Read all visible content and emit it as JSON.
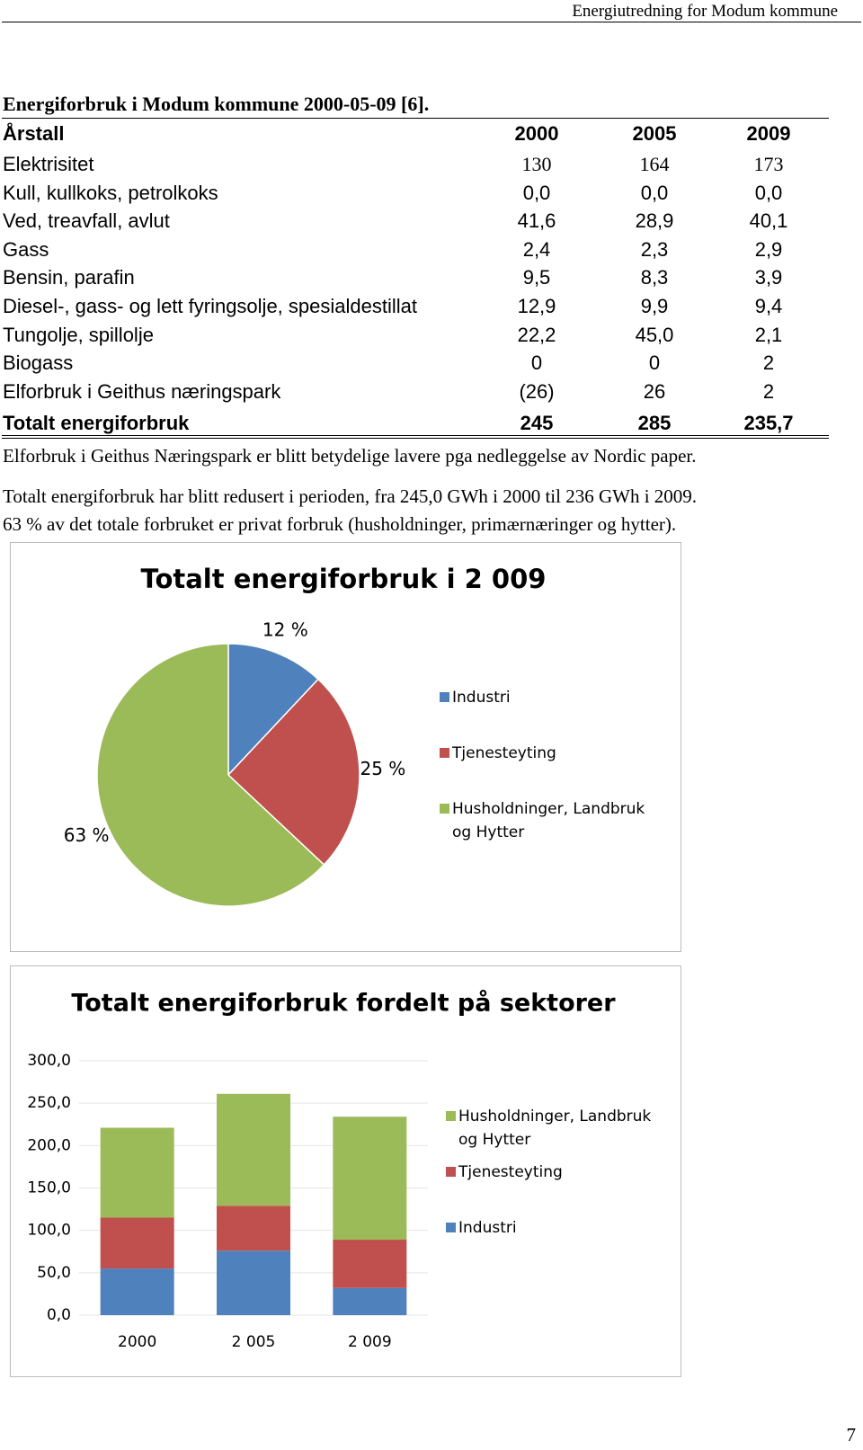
{
  "header": {
    "title": "Energiutredning for Modum kommune",
    "page_number": "7"
  },
  "table": {
    "caption": "Energiforbruk i Modum kommune 2000-05-09 [6].",
    "columns": [
      "Årstall",
      "2000",
      "2005",
      "2009"
    ],
    "rows": [
      [
        "Elektrisitet",
        "130",
        "164",
        "173"
      ],
      [
        "Kull, kullkoks, petrolkoks",
        "0,0",
        "0,0",
        "0,0"
      ],
      [
        "Ved, treavfall, avlut",
        "41,6",
        "28,9",
        "40,1"
      ],
      [
        "Gass",
        "2,4",
        "2,3",
        "2,9"
      ],
      [
        "Bensin, parafin",
        "9,5",
        "8,3",
        "3,9"
      ],
      [
        "Diesel-, gass- og lett fyringsolje, spesialdestillat",
        "12,9",
        "9,9",
        "9,4"
      ],
      [
        "Tungolje, spillolje",
        "22,2",
        "45,0",
        "2,1"
      ],
      [
        "Biogass",
        "0",
        "0",
        "2"
      ],
      [
        "Elforbruk i Geithus næringspark",
        "(26)",
        "26",
        "2"
      ]
    ],
    "total": [
      "Totalt energiforbruk",
      "245",
      "285",
      "235,7"
    ]
  },
  "notes": [
    "Elforbruk i Geithus Næringspark er blitt betydelige lavere pga nedleggelse av Nordic paper.",
    "Totalt energiforbruk har blitt redusert i perioden, fra 245,0 GWh i 2000 til 236 GWh i 2009.",
    "63 % av det totale forbruket er privat forbruk (husholdninger, primærnæringer og hytter)."
  ],
  "chart_data": [
    {
      "type": "pie",
      "title": "Totalt energiforbruk i 2 009",
      "categories": [
        "Industri",
        "Tjenesteyting",
        "Husholdninger, Landbruk og Hytter"
      ],
      "values": [
        12,
        25,
        63
      ],
      "value_labels": [
        "12 %",
        "25 %",
        "63 %"
      ],
      "colors": [
        "#4f81bd",
        "#c0504d",
        "#9bbb59"
      ]
    },
    {
      "type": "stacked-bar",
      "title": "Totalt energiforbruk fordelt på sektorer",
      "categories": [
        "2000",
        "2 005",
        "2 009"
      ],
      "series": [
        {
          "name": "Industri",
          "color": "#4f81bd",
          "values": [
            55,
            76,
            32
          ]
        },
        {
          "name": "Tjenesteyting",
          "color": "#c0504d",
          "values": [
            60,
            53,
            57
          ]
        },
        {
          "name": "Husholdninger, Landbruk og Hytter",
          "color": "#9bbb59",
          "values": [
            106,
            132,
            145
          ]
        }
      ],
      "ylim": [
        0,
        300
      ],
      "yticks": [
        {
          "value": 0,
          "label": "0,0"
        },
        {
          "value": 50,
          "label": "50,0"
        },
        {
          "value": 100,
          "label": "100,0"
        },
        {
          "value": 150,
          "label": "150,0"
        },
        {
          "value": 200,
          "label": "200,0"
        },
        {
          "value": 250,
          "label": "250,0"
        },
        {
          "value": 300,
          "label": "300,0"
        }
      ],
      "grid": true
    }
  ]
}
